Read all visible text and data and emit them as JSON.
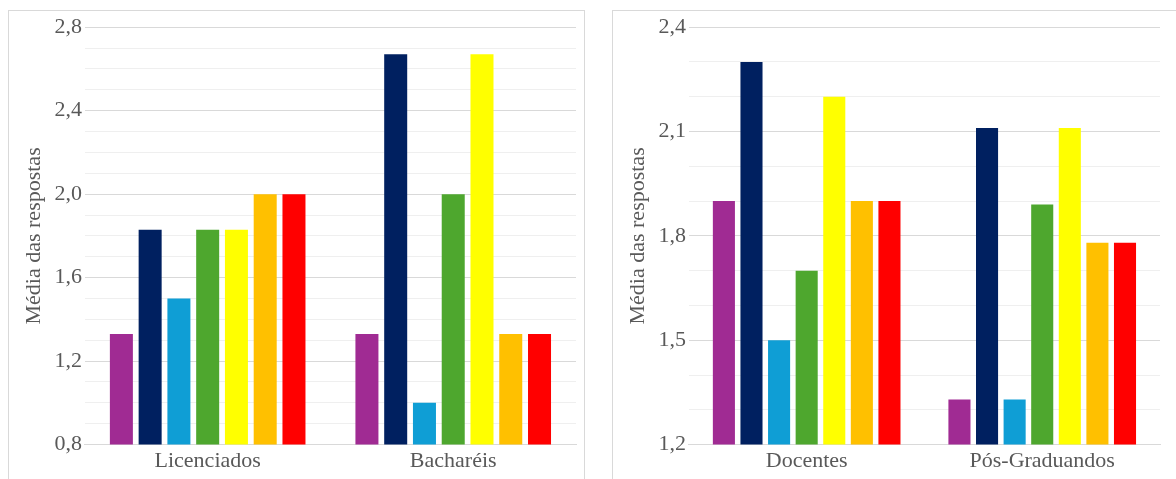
{
  "chart_data": [
    {
      "type": "bar",
      "ylabel": "Média das respostas",
      "categories": [
        "Licenciados",
        "Bacharéis"
      ],
      "series": [
        {
          "color": "#a02b93",
          "values": [
            1.33,
            1.33
          ]
        },
        {
          "color": "#002060",
          "values": [
            1.83,
            2.67
          ]
        },
        {
          "color": "#0f9ed5",
          "values": [
            1.5,
            1.0
          ]
        },
        {
          "color": "#4ea72e",
          "values": [
            1.83,
            2.0
          ]
        },
        {
          "color": "#ffff00",
          "values": [
            1.83,
            2.67
          ]
        },
        {
          "color": "#ffc000",
          "values": [
            2.0,
            1.33
          ]
        },
        {
          "color": "#ff0000",
          "values": [
            2.0,
            1.33
          ]
        }
      ],
      "ylim": [
        0.8,
        2.8
      ],
      "yticks": [
        {
          "value": 0.8,
          "label": "0,8"
        },
        {
          "value": 0.9,
          "label": null
        },
        {
          "value": 1.0,
          "label": null
        },
        {
          "value": 1.1,
          "label": null
        },
        {
          "value": 1.2,
          "label": "1,2"
        },
        {
          "value": 1.3,
          "label": null
        },
        {
          "value": 1.4,
          "label": null
        },
        {
          "value": 1.5,
          "label": null
        },
        {
          "value": 1.6,
          "label": "1,6"
        },
        {
          "value": 1.7,
          "label": null
        },
        {
          "value": 1.8,
          "label": null
        },
        {
          "value": 1.9,
          "label": null
        },
        {
          "value": 2.0,
          "label": "2,0"
        },
        {
          "value": 2.1,
          "label": null
        },
        {
          "value": 2.2,
          "label": null
        },
        {
          "value": 2.3,
          "label": null
        },
        {
          "value": 2.4,
          "label": "2,4"
        },
        {
          "value": 2.5,
          "label": null
        },
        {
          "value": 2.6,
          "label": null
        },
        {
          "value": 2.7,
          "label": null
        },
        {
          "value": 2.8,
          "label": "2,8"
        }
      ],
      "grid": "y",
      "legend": false
    },
    {
      "type": "bar",
      "ylabel": "Média das respostas",
      "categories": [
        "Docentes",
        "Pós-Graduandos"
      ],
      "series": [
        {
          "color": "#a02b93",
          "values": [
            1.9,
            1.33
          ]
        },
        {
          "color": "#002060",
          "values": [
            2.3,
            2.11
          ]
        },
        {
          "color": "#0f9ed5",
          "values": [
            1.5,
            1.33
          ]
        },
        {
          "color": "#4ea72e",
          "values": [
            1.7,
            1.89
          ]
        },
        {
          "color": "#ffff00",
          "values": [
            2.2,
            2.11
          ]
        },
        {
          "color": "#ffc000",
          "values": [
            1.9,
            1.78
          ]
        },
        {
          "color": "#ff0000",
          "values": [
            1.9,
            1.78
          ]
        }
      ],
      "ylim": [
        1.2,
        2.4
      ],
      "yticks": [
        {
          "value": 1.2,
          "label": "1,2"
        },
        {
          "value": 1.3,
          "label": null
        },
        {
          "value": 1.4,
          "label": null
        },
        {
          "value": 1.5,
          "label": "1,5"
        },
        {
          "value": 1.6,
          "label": null
        },
        {
          "value": 1.7,
          "label": null
        },
        {
          "value": 1.8,
          "label": "1,8"
        },
        {
          "value": 1.9,
          "label": null
        },
        {
          "value": 2.0,
          "label": null
        },
        {
          "value": 2.1,
          "label": "2,1"
        },
        {
          "value": 2.2,
          "label": null
        },
        {
          "value": 2.3,
          "label": null
        },
        {
          "value": 2.4,
          "label": "2,4"
        }
      ],
      "grid": "y",
      "legend": false
    }
  ]
}
